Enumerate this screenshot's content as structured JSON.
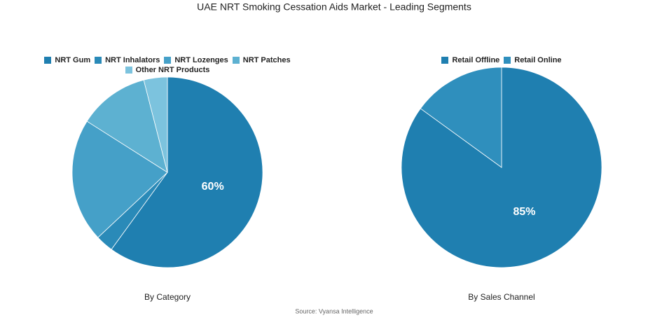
{
  "title": "UAE NRT Smoking Cessation Aids Market - Leading Segments",
  "source": "Source: Vyansa Intelligence",
  "chart_data": [
    {
      "type": "pie",
      "title": "By Category",
      "categories": [
        "NRT Gum",
        "NRT Inhalators",
        "NRT Lozenges",
        "NRT Patches",
        "Other NRT Products"
      ],
      "values": [
        60,
        3,
        21,
        12,
        4
      ],
      "value_labels": [
        "60%",
        null,
        null,
        null,
        null
      ],
      "colors": [
        "#1f7fb0",
        "#2a8ab8",
        "#45a0c8",
        "#5db1d1",
        "#7cc3de"
      ]
    },
    {
      "type": "pie",
      "title": "By Sales Channel",
      "categories": [
        "Retail Offline",
        "Retail Online"
      ],
      "values": [
        85,
        15
      ],
      "value_labels": [
        "85%",
        null
      ],
      "colors": [
        "#1f7fb0",
        "#2f8fbd"
      ]
    }
  ]
}
